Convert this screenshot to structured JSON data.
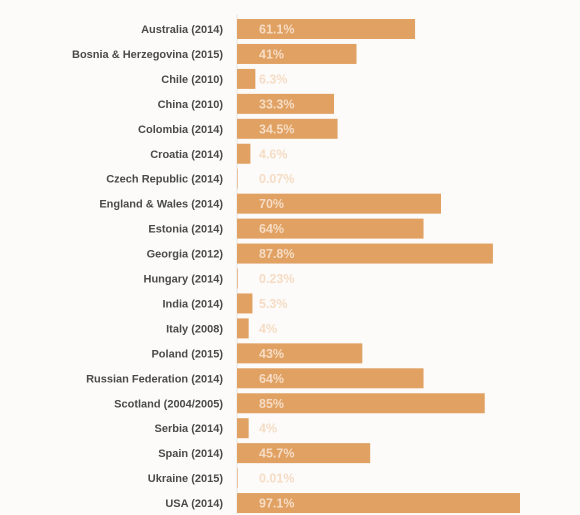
{
  "chart_data": {
    "type": "bar",
    "orientation": "horizontal",
    "categories": [
      "Australia (2014)",
      "Bosnia & Herzegovina (2015)",
      "Chile (2010)",
      "China (2010)",
      "Colombia (2014)",
      "Croatia (2014)",
      "Czech Republic (2014)",
      "England & Wales (2014)",
      "Estonia (2014)",
      "Georgia (2012)",
      "Hungary (2014)",
      "India (2014)",
      "Italy (2008)",
      "Poland (2015)",
      "Russian Federation (2014)",
      "Scotland (2004/2005)",
      "Serbia (2014)",
      "Spain (2014)",
      "Ukraine (2015)",
      "USA (2014)"
    ],
    "values": [
      61.1,
      41,
      6.3,
      33.3,
      34.5,
      4.6,
      0.07,
      70,
      64,
      87.8,
      0.23,
      5.3,
      4,
      43,
      64,
      85,
      4,
      45.7,
      0.01,
      97.1
    ],
    "value_labels": [
      "61.1%",
      "41%",
      "6.3%",
      "33.3%",
      "34.5%",
      "4.6%",
      "0.07%",
      "70%",
      "64%",
      "87.8%",
      "0.23%",
      "5.3%",
      "4%",
      "43%",
      "64%",
      "85%",
      "4%",
      "45.7%",
      "0.01%",
      "97.1%"
    ],
    "xlim": [
      0,
      100
    ],
    "title": "",
    "xlabel": "",
    "ylabel": "",
    "grid": false,
    "legend": "none",
    "colors": {
      "bar": "#e0a163",
      "value_label": "#f6dcc4",
      "category_label": "#4a4a4a",
      "axis_line": "#e8e6e3",
      "background": "#fcfbfa"
    }
  }
}
